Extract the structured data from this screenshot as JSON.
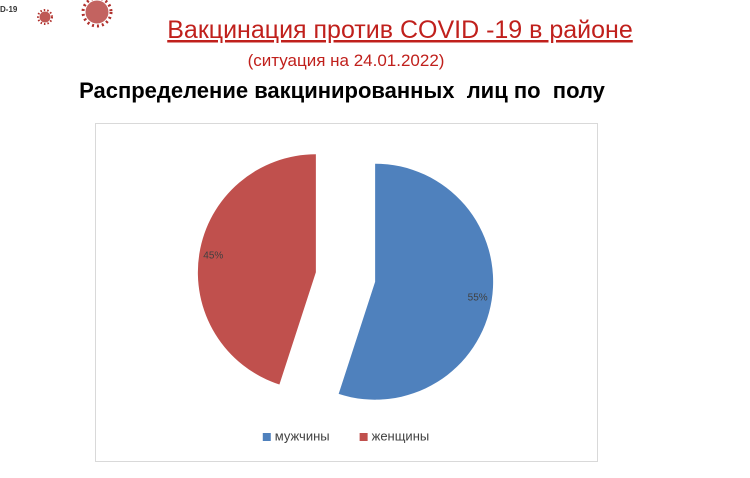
{
  "header": {
    "corner_text": "D-19",
    "title": "Вакцинация против COVID -19 в районе",
    "subtitle": "(ситуация на 24.01.2022)"
  },
  "chart_data": {
    "type": "pie",
    "title": "Распределение вакцинированных  лиц по  полу",
    "categories": [
      "мужчины",
      "женщины"
    ],
    "values": [
      55,
      45
    ],
    "value_labels": [
      "55%",
      "45%"
    ],
    "colors": [
      "#4f81bd",
      "#c0504d"
    ],
    "legend": "bottom"
  }
}
